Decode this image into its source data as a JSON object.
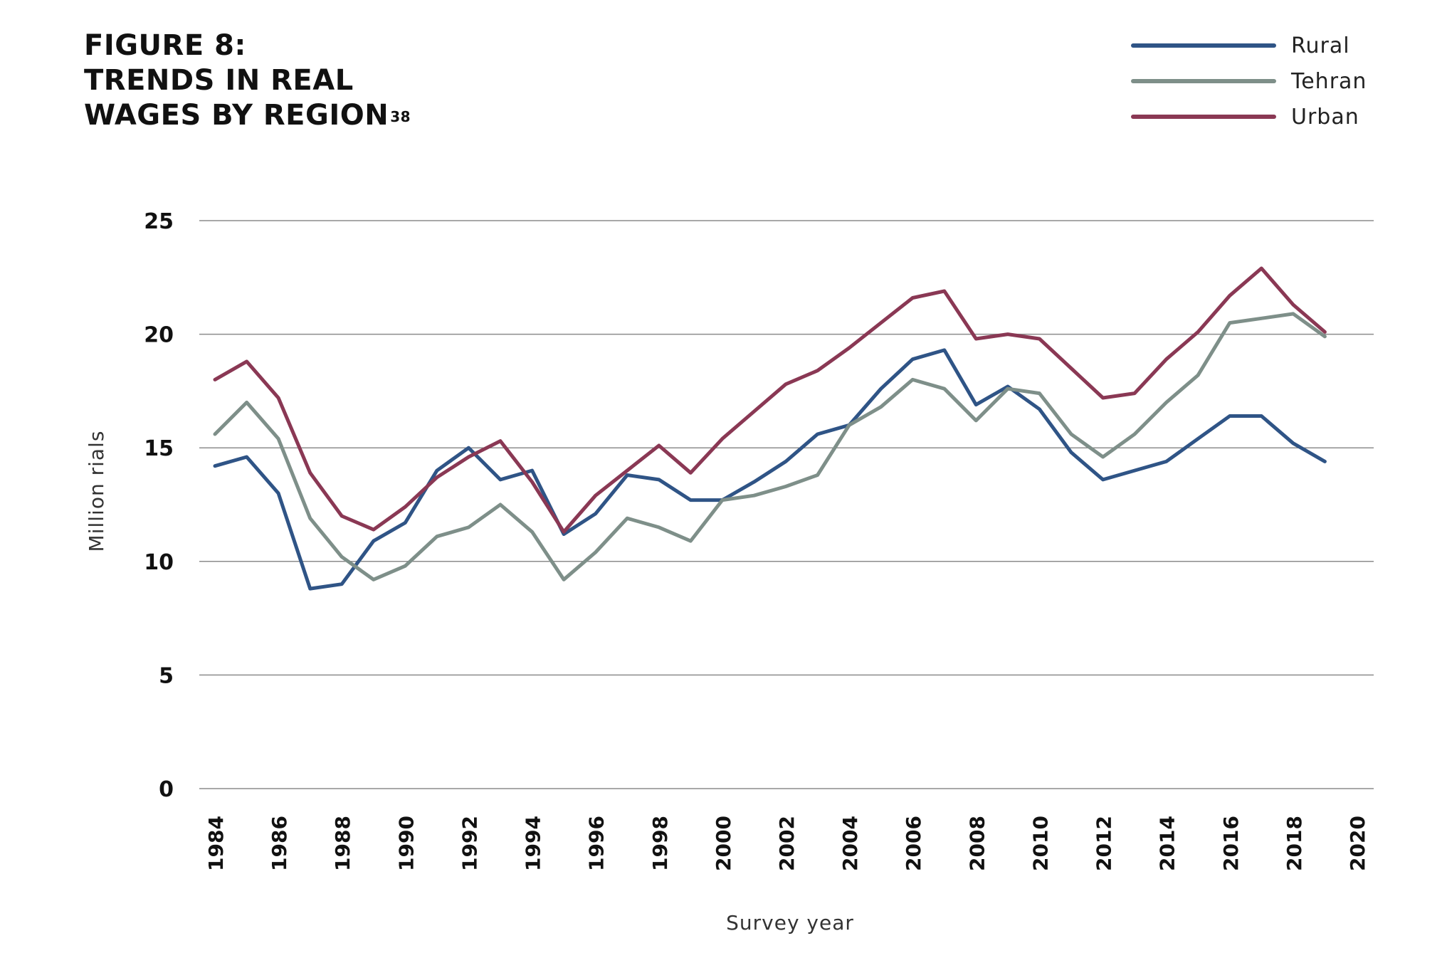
{
  "figure": {
    "title_lines": [
      "FIGURE 8:",
      "TRENDS IN REAL",
      "WAGES BY REGION"
    ],
    "footnote": "38"
  },
  "chart_data": {
    "type": "line",
    "xlabel": "Survey year",
    "ylabel": "Million rials",
    "xlim": [
      1984,
      2020
    ],
    "ylim": [
      0,
      25
    ],
    "x_ticks": [
      1984,
      1986,
      1988,
      1990,
      1992,
      1994,
      1996,
      1998,
      2000,
      2002,
      2004,
      2006,
      2008,
      2010,
      2012,
      2014,
      2016,
      2018,
      2020
    ],
    "y_ticks": [
      0,
      5,
      10,
      15,
      20,
      25
    ],
    "grid": "horizontal",
    "legend_position": "top-right",
    "x": [
      1984,
      1985,
      1986,
      1987,
      1988,
      1989,
      1990,
      1991,
      1992,
      1993,
      1994,
      1995,
      1996,
      1997,
      1998,
      1999,
      2000,
      2001,
      2002,
      2003,
      2004,
      2005,
      2006,
      2007,
      2008,
      2009,
      2010,
      2011,
      2012,
      2013,
      2014,
      2015,
      2016,
      2017,
      2018,
      2019
    ],
    "series": [
      {
        "name": "Rural",
        "color": "#2f5486",
        "values": [
          14.2,
          14.6,
          13.0,
          8.8,
          9.0,
          10.9,
          11.7,
          14.0,
          15.0,
          13.6,
          14.0,
          11.2,
          12.1,
          13.8,
          13.6,
          12.7,
          12.7,
          13.5,
          14.4,
          15.6,
          16.0,
          17.6,
          18.9,
          19.3,
          16.9,
          17.7,
          16.7,
          14.8,
          13.6,
          14.0,
          14.4,
          15.4,
          16.4,
          16.4,
          15.2,
          14.4
        ]
      },
      {
        "name": "Tehran",
        "color": "#7e8f89",
        "values": [
          15.6,
          17.0,
          15.4,
          11.9,
          10.2,
          9.2,
          9.8,
          11.1,
          11.5,
          12.5,
          11.3,
          9.2,
          10.4,
          11.9,
          11.5,
          10.9,
          12.7,
          12.9,
          13.3,
          13.8,
          16.0,
          16.8,
          18.0,
          17.6,
          16.2,
          17.6,
          17.4,
          15.6,
          14.6,
          15.6,
          17.0,
          18.2,
          20.5,
          20.7,
          20.9,
          19.9
        ]
      },
      {
        "name": "Urban",
        "color": "#8a3854",
        "values": [
          18.0,
          18.8,
          17.2,
          13.9,
          12.0,
          11.4,
          12.4,
          13.7,
          14.6,
          15.3,
          13.5,
          11.3,
          12.9,
          14.0,
          15.1,
          13.9,
          15.4,
          16.6,
          17.8,
          18.4,
          19.4,
          20.5,
          21.6,
          21.9,
          19.8,
          20.0,
          19.8,
          18.5,
          17.2,
          17.4,
          18.9,
          20.1,
          21.7,
          22.9,
          21.3,
          20.1
        ]
      }
    ]
  }
}
